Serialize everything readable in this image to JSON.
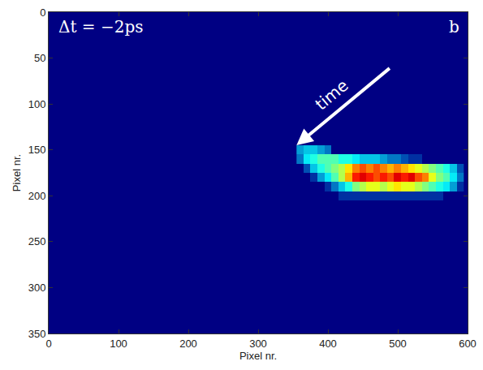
{
  "chart_data": {
    "type": "heatmap",
    "x_label": "Pixel nr.",
    "y_label": "Pixel nr.",
    "annotations": [
      "Δt = −2ps",
      "b",
      "time"
    ],
    "xlim": [
      0,
      600
    ],
    "ylim": [
      350,
      0
    ],
    "xticks": [
      0,
      100,
      200,
      300,
      400,
      500,
      600
    ],
    "yticks": [
      0,
      50,
      100,
      150,
      200,
      250,
      300,
      350
    ],
    "zlim": [
      0,
      1
    ],
    "x": [
      360,
      370,
      380,
      390,
      400,
      410,
      420,
      430,
      440,
      450,
      460,
      470,
      480,
      490,
      500,
      510,
      520,
      530,
      540,
      550,
      560,
      570,
      580,
      590
    ],
    "y": [
      150,
      160,
      170,
      180,
      190,
      200
    ],
    "cells": [
      [
        0.25,
        0.3,
        0.3,
        0.25,
        0.2,
        0,
        0,
        0,
        0,
        0,
        0,
        0,
        0,
        0,
        0,
        0,
        0,
        0,
        0,
        0,
        0,
        0,
        0,
        0
      ],
      [
        0.2,
        0.35,
        0.4,
        0.45,
        0.45,
        0.45,
        0.4,
        0.4,
        0.35,
        0.3,
        0.3,
        0.3,
        0.25,
        0.2,
        0.2,
        0.15,
        0.1,
        0.1,
        0,
        0,
        0,
        0,
        0,
        0
      ],
      [
        0,
        0.15,
        0.3,
        0.4,
        0.45,
        0.5,
        0.55,
        0.65,
        0.75,
        0.8,
        0.75,
        0.8,
        0.75,
        0.7,
        0.75,
        0.7,
        0.65,
        0.6,
        0.55,
        0.5,
        0.45,
        0.4,
        0.3,
        0.15
      ],
      [
        0,
        0,
        0.1,
        0.25,
        0.35,
        0.45,
        0.55,
        0.7,
        0.85,
        0.9,
        0.85,
        0.8,
        0.85,
        0.8,
        0.9,
        0.85,
        0.9,
        0.8,
        0.75,
        0.6,
        0.5,
        0.45,
        0.35,
        0.2
      ],
      [
        0,
        0,
        0,
        0,
        0.1,
        0.2,
        0.3,
        0.4,
        0.5,
        0.55,
        0.6,
        0.6,
        0.55,
        0.6,
        0.65,
        0.6,
        0.6,
        0.55,
        0.5,
        0.45,
        0.4,
        0.35,
        0.25,
        0.1
      ],
      [
        0,
        0,
        0,
        0,
        0,
        0,
        0.1,
        0.1,
        0.1,
        0.1,
        0.1,
        0.1,
        0.1,
        0.1,
        0.1,
        0.1,
        0.1,
        0.1,
        0.1,
        0.1,
        0.1,
        0,
        0,
        0
      ]
    ]
  }
}
